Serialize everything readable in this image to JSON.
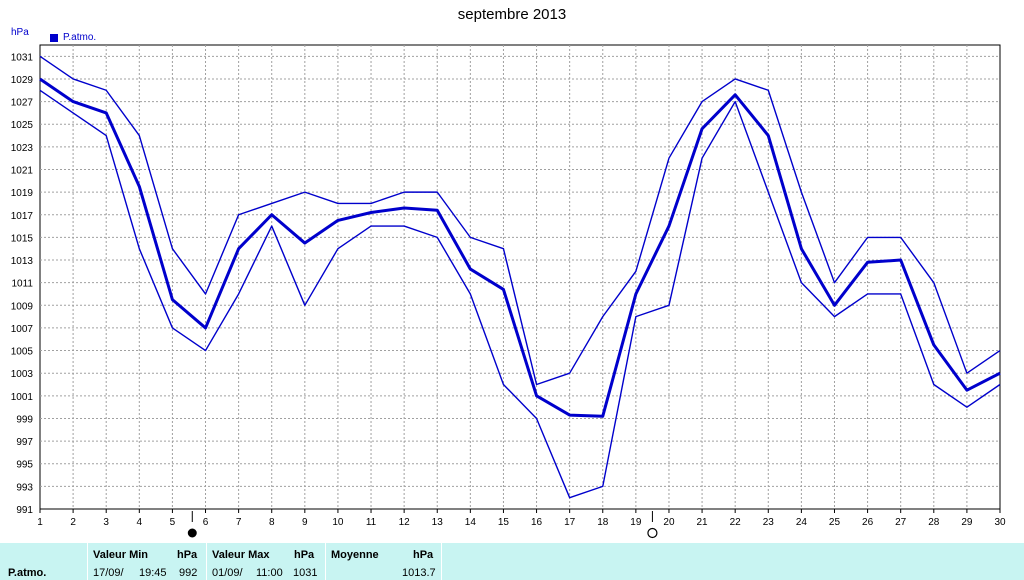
{
  "chart_data": {
    "type": "line",
    "title": "septembre 2013",
    "ylabel": "hPa",
    "legend": "P.atmo.",
    "legend_position": "top-left",
    "grid": true,
    "x": [
      1,
      2,
      3,
      4,
      5,
      6,
      7,
      8,
      9,
      10,
      11,
      12,
      13,
      14,
      15,
      16,
      17,
      18,
      19,
      20,
      21,
      22,
      23,
      24,
      25,
      26,
      27,
      28,
      29,
      30
    ],
    "xlim": [
      1,
      30
    ],
    "ylim": [
      991,
      1032
    ],
    "yticks": [
      991,
      993,
      995,
      997,
      999,
      1001,
      1003,
      1005,
      1007,
      1009,
      1011,
      1013,
      1015,
      1017,
      1019,
      1021,
      1023,
      1025,
      1027,
      1029,
      1031
    ],
    "moon_phases": [
      {
        "day": 5.6,
        "symbol": "new-moon"
      },
      {
        "day": 19.5,
        "symbol": "full-moon"
      }
    ],
    "series": [
      {
        "role": "max",
        "values": [
          1031,
          1029,
          1028,
          1024,
          1014,
          1010,
          1017,
          1018,
          1019,
          1018,
          1018,
          1019,
          1019,
          1015,
          1014,
          1002,
          1003,
          1008,
          1012,
          1022,
          1027,
          1029,
          1028,
          1019,
          1011,
          1015,
          1015,
          1011,
          1003,
          1005
        ]
      },
      {
        "role": "mean",
        "values": [
          1029,
          1027,
          1026,
          1019.5,
          1009.5,
          1007,
          1014,
          1017,
          1014.5,
          1016.5,
          1017.2,
          1017.6,
          1017.4,
          1012.2,
          1010.4,
          1001,
          999.3,
          999.2,
          1010,
          1016,
          1024.6,
          1027.6,
          1024,
          1014,
          1009,
          1012.8,
          1013,
          1005.5,
          1001.5,
          1003
        ]
      },
      {
        "role": "min",
        "values": [
          1028,
          1026,
          1024,
          1014,
          1007,
          1005,
          1010,
          1016,
          1009,
          1014,
          1016,
          1016,
          1015,
          1010,
          1002,
          999,
          992,
          993,
          1008,
          1009,
          1022,
          1027,
          1019,
          1011,
          1008,
          1010,
          1010,
          1002,
          1000,
          1002
        ]
      }
    ]
  },
  "stats": {
    "row_label": "P.atmo.",
    "min_header": "Valeur Min",
    "min_unit": "hPa",
    "min_date": "17/09/",
    "min_time": "19:45",
    "min_value": "992",
    "max_header": "Valeur Max",
    "max_unit": "hPa",
    "max_date": "01/09/",
    "max_time": "11:00",
    "max_value": "1031",
    "avg_header": "Moyenne",
    "avg_unit": "hPa",
    "avg_value": "1013.7"
  },
  "colors": {
    "line": "#0000cc",
    "grid": "#a0a0a0",
    "stats_bg": "#c8f4f2"
  }
}
